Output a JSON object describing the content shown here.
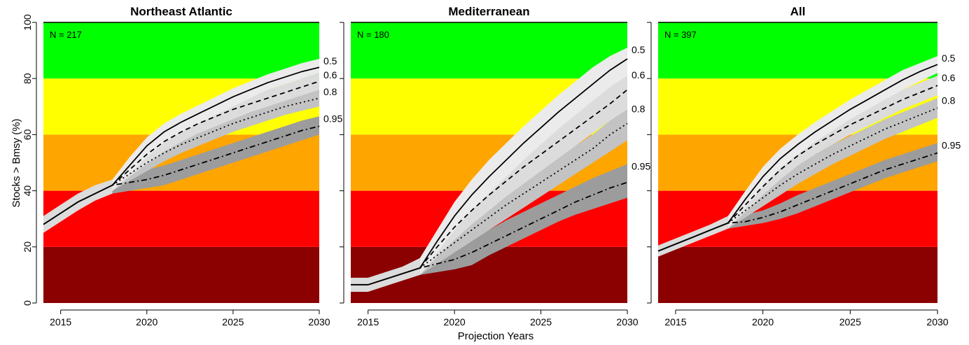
{
  "figure": {
    "ylabel": "Stocks > Bmsy (%)",
    "xlabel": "Projection Years"
  },
  "colors": {
    "band_0_20": "#8b0000",
    "band_20_40": "#ff0000",
    "band_40_60": "#ffa500",
    "band_60_80": "#ffff00",
    "band_80_100": "#00ff00",
    "ribbon_0.5": "#ebebeb",
    "ribbon_0.6": "#dcdcdc",
    "ribbon_0.8": "#c3c3c3",
    "ribbon_0.95": "#9c9c9c",
    "line": "#000000"
  },
  "chart_data": [
    {
      "type": "line",
      "title": "Northeast Atlantic",
      "annotation": "N = 217",
      "xlim": [
        2014,
        2030
      ],
      "ylim": [
        0,
        100
      ],
      "xticks": [
        2015,
        2020,
        2025,
        2030
      ],
      "yticks": [
        0,
        20,
        40,
        60,
        80,
        100
      ],
      "bands": [
        {
          "from": 0,
          "to": 20,
          "color": "#8b0000"
        },
        {
          "from": 20,
          "to": 40,
          "color": "#ff0000"
        },
        {
          "from": 40,
          "to": 60,
          "color": "#ffa500"
        },
        {
          "from": 60,
          "to": 80,
          "color": "#ffff00"
        },
        {
          "from": 80,
          "to": 100,
          "color": "#00ff00"
        }
      ],
      "history": {
        "x": [
          2014,
          2015,
          2016,
          2017,
          2018
        ],
        "y": [
          28,
          32,
          36,
          39,
          42
        ],
        "lower": [
          25,
          29,
          33,
          36.5,
          39
        ],
        "upper": [
          31,
          35,
          39,
          42,
          44
        ]
      },
      "series": [
        {
          "name": "0.5",
          "dash": "solid",
          "x": [
            2018,
            2019,
            2020,
            2021,
            2022,
            2023,
            2024,
            2025,
            2026,
            2027,
            2028,
            2029,
            2030
          ],
          "y": [
            42,
            49,
            56,
            61,
            64.5,
            67.5,
            70.5,
            73.5,
            76,
            78.5,
            80.5,
            82.5,
            84
          ],
          "lower": [
            40,
            46,
            52,
            57,
            61,
            64,
            67,
            70,
            73,
            76,
            78,
            80,
            82
          ],
          "upper": [
            44,
            52,
            59,
            64,
            67.5,
            70.5,
            73.5,
            76.5,
            79,
            81.5,
            83.5,
            85.5,
            87
          ]
        },
        {
          "name": "0.6",
          "dash": "dashed",
          "x": [
            2018,
            2019,
            2020,
            2021,
            2022,
            2023,
            2024,
            2025,
            2026,
            2027,
            2028,
            2029,
            2030
          ],
          "y": [
            42,
            47.5,
            53,
            57.5,
            61,
            64,
            66.5,
            69,
            71,
            73,
            75,
            77,
            79
          ],
          "lower": [
            40,
            45,
            49.5,
            54,
            57.5,
            60.5,
            63,
            65.5,
            68,
            70,
            72,
            74,
            76
          ],
          "upper": [
            44,
            50,
            56,
            60.5,
            64,
            67,
            69.5,
            72,
            74,
            76,
            78,
            80,
            82
          ]
        },
        {
          "name": "0.8",
          "dash": "dotted",
          "x": [
            2018,
            2019,
            2020,
            2021,
            2022,
            2023,
            2024,
            2025,
            2026,
            2027,
            2028,
            2029,
            2030
          ],
          "y": [
            42,
            46,
            50,
            53.5,
            56.5,
            59,
            61.5,
            64,
            66,
            68,
            70,
            71.5,
            73
          ],
          "lower": [
            40,
            43.5,
            47,
            50.5,
            53.5,
            56,
            58.5,
            61,
            63,
            65,
            67,
            68.5,
            70
          ],
          "upper": [
            44,
            48.5,
            53,
            56.5,
            59.5,
            62,
            64.5,
            67,
            69,
            71,
            73,
            74.5,
            76
          ]
        },
        {
          "name": "0.95",
          "dash": "dotdash",
          "x": [
            2018,
            2019,
            2020,
            2021,
            2022,
            2023,
            2024,
            2025,
            2026,
            2027,
            2028,
            2029,
            2030
          ],
          "y": [
            42,
            43,
            44,
            45.5,
            47.5,
            49.5,
            51.5,
            53.5,
            55.5,
            57.5,
            59.5,
            61.5,
            63
          ],
          "lower": [
            39,
            40,
            41,
            42,
            44,
            46,
            48,
            50,
            52,
            54,
            56,
            58,
            60
          ],
          "upper": [
            44,
            46,
            47.5,
            49,
            51,
            53,
            55,
            57,
            59,
            61,
            63,
            65,
            66.5
          ]
        }
      ]
    },
    {
      "type": "line",
      "title": "Mediterranean",
      "annotation": "N = 180",
      "xlim": [
        2014,
        2030
      ],
      "ylim": [
        0,
        100
      ],
      "xticks": [
        2015,
        2020,
        2025,
        2030
      ],
      "yticks": [
        0,
        20,
        40,
        60,
        80,
        100
      ],
      "bands": [
        {
          "from": 0,
          "to": 20,
          "color": "#8b0000"
        },
        {
          "from": 20,
          "to": 40,
          "color": "#ff0000"
        },
        {
          "from": 40,
          "to": 60,
          "color": "#ffa500"
        },
        {
          "from": 60,
          "to": 80,
          "color": "#ffff00"
        },
        {
          "from": 80,
          "to": 100,
          "color": "#00ff00"
        }
      ],
      "history": {
        "x": [
          2014,
          2015,
          2016,
          2017,
          2018
        ],
        "y": [
          6.5,
          6.5,
          8.5,
          10.5,
          12.5
        ],
        "lower": [
          4,
          4,
          6,
          8,
          10
        ],
        "upper": [
          9,
          9,
          11,
          13,
          16
        ]
      },
      "series": [
        {
          "name": "0.5",
          "dash": "solid",
          "x": [
            2018,
            2019,
            2020,
            2021,
            2022,
            2023,
            2024,
            2025,
            2026,
            2027,
            2028,
            2029,
            2030
          ],
          "y": [
            12.5,
            22,
            31,
            38.5,
            45,
            51,
            57,
            62.5,
            68,
            73,
            78,
            83,
            87
          ],
          "lower": [
            10,
            18,
            26,
            33,
            39,
            45,
            51,
            56.5,
            62,
            67,
            72,
            77,
            81
          ],
          "upper": [
            16,
            26,
            36,
            44,
            51,
            57,
            63,
            68.5,
            74,
            79,
            84,
            88,
            91
          ]
        },
        {
          "name": "0.6",
          "dash": "dashed",
          "x": [
            2018,
            2019,
            2020,
            2021,
            2022,
            2023,
            2024,
            2025,
            2026,
            2027,
            2028,
            2029,
            2030
          ],
          "y": [
            12.5,
            20,
            27,
            33,
            38.5,
            43.5,
            48.5,
            53,
            57.5,
            62,
            66.5,
            71,
            76
          ],
          "lower": [
            10,
            16.5,
            22.5,
            28,
            33,
            38,
            42.5,
            47,
            51.5,
            56,
            60.5,
            65,
            69
          ],
          "upper": [
            16,
            24,
            32,
            38.5,
            44.5,
            49.5,
            54.5,
            59,
            63.5,
            68,
            72.5,
            77,
            82
          ]
        },
        {
          "name": "0.8",
          "dash": "dotted",
          "x": [
            2018,
            2019,
            2020,
            2021,
            2022,
            2023,
            2024,
            2025,
            2026,
            2027,
            2028,
            2029,
            2030
          ],
          "y": [
            12.5,
            17,
            21.5,
            26,
            30.5,
            35,
            39,
            43,
            47,
            51,
            55,
            60,
            64
          ],
          "lower": [
            10,
            14,
            18,
            22,
            26,
            30,
            34,
            38,
            42,
            46,
            50,
            54,
            58
          ],
          "upper": [
            16,
            21,
            26,
            31,
            35.5,
            40,
            44,
            48,
            52,
            56,
            60,
            65,
            70
          ]
        },
        {
          "name": "0.95",
          "dash": "dotdash",
          "x": [
            2018,
            2019,
            2020,
            2021,
            2022,
            2023,
            2024,
            2025,
            2026,
            2027,
            2028,
            2029,
            2030
          ],
          "y": [
            12.5,
            14,
            15.5,
            18,
            21,
            24,
            27,
            30,
            33,
            36,
            38.5,
            41,
            43
          ],
          "lower": [
            10,
            11,
            12,
            13.5,
            17,
            20,
            23,
            26,
            29,
            31.5,
            33.5,
            35.5,
            37.5
          ],
          "upper": [
            16,
            17.5,
            19,
            22.5,
            26,
            29.5,
            32.5,
            35.5,
            38.5,
            41.5,
            44.5,
            47,
            49.5
          ]
        }
      ]
    },
    {
      "type": "line",
      "title": "All",
      "annotation": "N = 397",
      "xlim": [
        2014,
        2030
      ],
      "ylim": [
        0,
        100
      ],
      "xticks": [
        2015,
        2020,
        2025,
        2030
      ],
      "yticks": [
        0,
        20,
        40,
        60,
        80,
        100
      ],
      "bands": [
        {
          "from": 0,
          "to": 20,
          "color": "#8b0000"
        },
        {
          "from": 20,
          "to": 40,
          "color": "#ff0000"
        },
        {
          "from": 40,
          "to": 60,
          "color": "#ffa500"
        },
        {
          "from": 60,
          "to": 80,
          "color": "#ffff00"
        },
        {
          "from": 80,
          "to": 100,
          "color": "#00ff00"
        }
      ],
      "history": {
        "x": [
          2014,
          2015,
          2016,
          2017,
          2018
        ],
        "y": [
          18.5,
          21,
          23.5,
          26,
          28.5
        ],
        "lower": [
          16.5,
          19,
          21.5,
          24,
          26.5
        ],
        "upper": [
          20.5,
          23,
          25.5,
          28,
          31
        ]
      },
      "series": [
        {
          "name": "0.5",
          "dash": "solid",
          "x": [
            2018,
            2019,
            2020,
            2021,
            2022,
            2023,
            2024,
            2025,
            2026,
            2027,
            2028,
            2029,
            2030
          ],
          "y": [
            28.5,
            37,
            45,
            51.5,
            56.5,
            61,
            65,
            69,
            72.5,
            76,
            79.5,
            82.5,
            85
          ],
          "lower": [
            26.5,
            34,
            41.5,
            48,
            53,
            57.5,
            61.5,
            65.5,
            69,
            72.5,
            76,
            79,
            82
          ],
          "upper": [
            31,
            40,
            48.5,
            55,
            60,
            64.5,
            68.5,
            72.5,
            76,
            79.5,
            83,
            85.5,
            88
          ]
        },
        {
          "name": "0.6",
          "dash": "dashed",
          "x": [
            2018,
            2019,
            2020,
            2021,
            2022,
            2023,
            2024,
            2025,
            2026,
            2027,
            2028,
            2029,
            2030
          ],
          "y": [
            28.5,
            35,
            41.5,
            47.5,
            52.5,
            56.5,
            60,
            63.5,
            66.5,
            69.5,
            72.5,
            75,
            77.5
          ],
          "lower": [
            26.5,
            32.5,
            38.5,
            44,
            49,
            53,
            56.5,
            60,
            63,
            66,
            69,
            71.5,
            74
          ],
          "upper": [
            31,
            37.5,
            44.5,
            51,
            56,
            60,
            63.5,
            67,
            70,
            73,
            76,
            78.5,
            81
          ]
        },
        {
          "name": "0.8",
          "dash": "dotted",
          "x": [
            2018,
            2019,
            2020,
            2021,
            2022,
            2023,
            2024,
            2025,
            2026,
            2027,
            2028,
            2029,
            2030
          ],
          "y": [
            28.5,
            33,
            37.5,
            42,
            46,
            49.5,
            53,
            56,
            59,
            62,
            64.5,
            67,
            69.5
          ],
          "lower": [
            26.5,
            30.5,
            34.5,
            38.5,
            42.5,
            46,
            49.5,
            52.5,
            55.5,
            58.5,
            61,
            63.5,
            66
          ],
          "upper": [
            31,
            35.5,
            40.5,
            45.5,
            49.5,
            53,
            56.5,
            59.5,
            62.5,
            65.5,
            68,
            70.5,
            73
          ]
        },
        {
          "name": "0.95",
          "dash": "dotdash",
          "x": [
            2018,
            2019,
            2020,
            2021,
            2022,
            2023,
            2024,
            2025,
            2026,
            2027,
            2028,
            2029,
            2030
          ],
          "y": [
            28.5,
            29,
            30.5,
            32.5,
            35,
            37.5,
            40,
            42.5,
            45,
            47.5,
            49.5,
            51.5,
            53.5
          ],
          "lower": [
            26.5,
            27.5,
            28.5,
            30,
            32,
            34.5,
            37,
            39.5,
            42,
            44.5,
            46.5,
            48.5,
            50.5
          ],
          "upper": [
            31,
            31.5,
            33,
            35.5,
            38.5,
            41,
            43.5,
            46,
            48.5,
            51,
            53,
            55,
            57
          ]
        }
      ]
    }
  ]
}
